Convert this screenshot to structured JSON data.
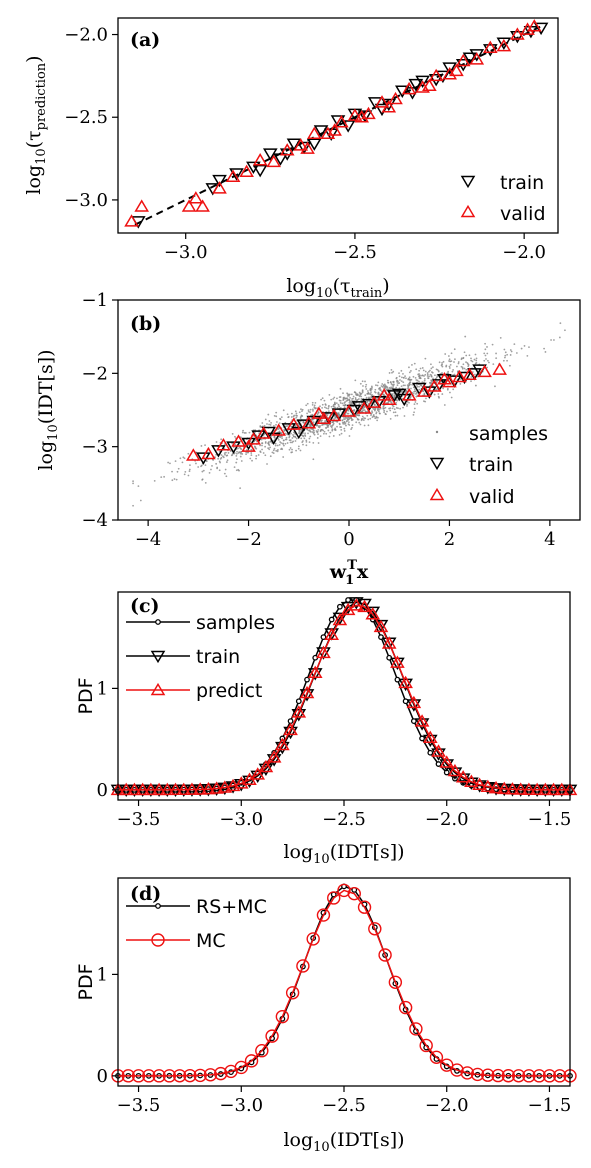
{
  "colors": {
    "black": "#000000",
    "red": "#ee1111",
    "gray": "#888888"
  },
  "chart_data": [
    {
      "panel": "(a)",
      "type": "scatter",
      "xlabel_base": "log",
      "xlabel_sub": "10",
      "xlabel_arg": "(τ",
      "xlabel_argsub": "train",
      "xlabel_close": ")",
      "ylabel_base": "log",
      "ylabel_sub": "10",
      "ylabel_arg": "(τ",
      "ylabel_argsub": "prediction",
      "ylabel_close": ")",
      "xlim": [
        -3.2,
        -1.9
      ],
      "ylim": [
        -3.2,
        -1.9
      ],
      "xticks": [
        -3.0,
        -2.5,
        -2.0
      ],
      "xtick_labels": [
        "−3.0",
        "−2.5",
        "−2.0"
      ],
      "yticks": [
        -3.0,
        -2.5,
        -2.0
      ],
      "ytick_labels": [
        "−3.0",
        "−2.5",
        "−2.0"
      ],
      "legend": [
        "train",
        "valid"
      ],
      "legend_loc": "lower-right",
      "fit_line": {
        "x": [
          -3.15,
          -1.95
        ],
        "y": [
          -3.15,
          -1.95
        ],
        "style": "dashed"
      },
      "series": [
        {
          "name": "train",
          "marker": "triangle-down",
          "color": "#000000",
          "x": [
            -3.14,
            -2.92,
            -2.9,
            -2.85,
            -2.8,
            -2.75,
            -2.72,
            -2.68,
            -2.65,
            -2.6,
            -2.57,
            -2.55,
            -2.5,
            -2.47,
            -2.44,
            -2.4,
            -2.36,
            -2.33,
            -2.3,
            -2.26,
            -2.22,
            -2.18,
            -2.14,
            -2.1,
            -2.06,
            -2.02,
            -1.98,
            -1.95,
            -2.62,
            -2.52,
            -2.42,
            -2.32,
            -2.24,
            -2.16,
            -2.78,
            -2.7
          ],
          "y": [
            -3.13,
            -2.93,
            -2.88,
            -2.84,
            -2.8,
            -2.72,
            -2.75,
            -2.66,
            -2.68,
            -2.58,
            -2.6,
            -2.52,
            -2.48,
            -2.49,
            -2.41,
            -2.42,
            -2.34,
            -2.35,
            -2.28,
            -2.27,
            -2.2,
            -2.18,
            -2.12,
            -2.09,
            -2.05,
            -2.01,
            -1.98,
            -1.96,
            -2.66,
            -2.55,
            -2.45,
            -2.3,
            -2.25,
            -2.14,
            -2.82,
            -2.72
          ]
        },
        {
          "name": "valid",
          "marker": "triangle-up",
          "color": "#ee1111",
          "x": [
            -3.16,
            -3.13,
            -2.99,
            -2.97,
            -2.95,
            -2.9,
            -2.86,
            -2.82,
            -2.78,
            -2.74,
            -2.7,
            -2.66,
            -2.62,
            -2.58,
            -2.54,
            -2.5,
            -2.46,
            -2.42,
            -2.38,
            -2.34,
            -2.3,
            -2.26,
            -2.22,
            -2.18,
            -2.14,
            -2.1,
            -2.06,
            -2.02,
            -1.99,
            -1.97,
            -2.64,
            -2.56,
            -2.48,
            -2.4,
            -2.28,
            -2.2
          ],
          "y": [
            -3.13,
            -3.04,
            -3.04,
            -2.99,
            -3.04,
            -2.93,
            -2.86,
            -2.83,
            -2.76,
            -2.77,
            -2.7,
            -2.67,
            -2.6,
            -2.6,
            -2.53,
            -2.49,
            -2.48,
            -2.41,
            -2.39,
            -2.33,
            -2.32,
            -2.25,
            -2.24,
            -2.16,
            -2.15,
            -2.08,
            -2.07,
            -2.0,
            -1.97,
            -1.95,
            -2.69,
            -2.58,
            -2.5,
            -2.44,
            -2.31,
            -2.22
          ]
        }
      ]
    },
    {
      "panel": "(b)",
      "type": "scatter",
      "xlabel_base": "w",
      "xlabel_sub": "1",
      "xlabel_sup": "T",
      "xlabel_tail": "x",
      "ylabel_base": "log",
      "ylabel_sub": "10",
      "ylabel_arg": "(IDT[s])",
      "xlim": [
        -4.6,
        4.6
      ],
      "ylim": [
        -4.0,
        -1.0
      ],
      "xticks": [
        -4,
        -2,
        0,
        2,
        4
      ],
      "xtick_labels": [
        "−4",
        "−2",
        "0",
        "2",
        "4"
      ],
      "yticks": [
        -4,
        -3,
        -2,
        -1
      ],
      "ytick_labels": [
        "−4",
        "−3",
        "−2",
        "−1"
      ],
      "legend": [
        "samples",
        "train",
        "valid"
      ],
      "legend_loc": "lower-right",
      "samples_trend": {
        "intercept": -2.5,
        "slope": 0.24,
        "scatter_sd": 0.13,
        "x_sd": 1.4,
        "count": 1800
      },
      "series": [
        {
          "name": "train",
          "marker": "triangle-down",
          "color": "#000000",
          "x": [
            -2.9,
            -2.6,
            -2.3,
            -2.0,
            -1.8,
            -1.5,
            -1.2,
            -1.0,
            -0.7,
            -0.4,
            -0.2,
            0.1,
            0.4,
            0.6,
            0.9,
            1.1,
            1.4,
            1.6,
            1.9,
            2.1,
            2.3,
            2.6,
            -1.6,
            -0.9,
            0.2,
            1.0,
            1.8,
            2.5
          ],
          "y": [
            -3.15,
            -3.05,
            -3.0,
            -2.95,
            -2.85,
            -2.88,
            -2.75,
            -2.8,
            -2.65,
            -2.6,
            -2.55,
            -2.5,
            -2.42,
            -2.38,
            -2.3,
            -2.35,
            -2.2,
            -2.25,
            -2.08,
            -2.1,
            -2.05,
            -1.95,
            -2.8,
            -2.7,
            -2.45,
            -2.28,
            -2.15,
            -2.0
          ]
        },
        {
          "name": "valid",
          "marker": "triangle-up",
          "color": "#ee1111",
          "x": [
            -3.1,
            -2.8,
            -2.5,
            -2.2,
            -1.9,
            -1.7,
            -1.4,
            -1.1,
            -0.8,
            -0.5,
            -0.3,
            0.0,
            0.3,
            0.5,
            0.8,
            1.2,
            1.5,
            1.7,
            2.0,
            2.2,
            2.4,
            2.7,
            3.0,
            -2.0,
            -0.6,
            0.7,
            1.9
          ],
          "y": [
            -3.12,
            -3.1,
            -2.98,
            -2.93,
            -2.9,
            -2.82,
            -2.78,
            -2.7,
            -2.68,
            -2.62,
            -2.58,
            -2.52,
            -2.48,
            -2.4,
            -2.36,
            -2.3,
            -2.25,
            -2.18,
            -2.12,
            -2.05,
            -2.02,
            -1.98,
            -1.95,
            -3.0,
            -2.55,
            -2.3,
            -2.08
          ]
        }
      ]
    },
    {
      "panel": "(c)",
      "type": "line",
      "xlabel_base": "log",
      "xlabel_sub": "10",
      "xlabel_arg": "(IDT[s])",
      "ylabel": "PDF",
      "xlim": [
        -3.6,
        -1.4
      ],
      "ylim": [
        -0.1,
        1.95
      ],
      "xticks": [
        -3.5,
        -3.0,
        -2.5,
        -2.0,
        -1.5
      ],
      "xtick_labels": [
        "−3.5",
        "−3.0",
        "−2.5",
        "−2.0",
        "−1.5"
      ],
      "yticks": [
        0,
        1
      ],
      "ytick_labels": [
        "0",
        "1"
      ],
      "legend": [
        "samples",
        "train",
        "predict"
      ],
      "legend_loc": "upper-left",
      "series": [
        {
          "name": "samples",
          "marker": "circle-small",
          "color": "#000000",
          "mu": -2.46,
          "sigma": 0.21,
          "peak": 1.88
        },
        {
          "name": "train",
          "marker": "triangle-down",
          "color": "#000000",
          "mu": -2.43,
          "sigma": 0.215,
          "peak": 1.85
        },
        {
          "name": "predict",
          "marker": "triangle-up",
          "color": "#ee1111",
          "mu": -2.43,
          "sigma": 0.22,
          "peak": 1.82
        }
      ]
    },
    {
      "panel": "(d)",
      "type": "line",
      "xlabel_base": "log",
      "xlabel_sub": "10",
      "xlabel_arg": "(IDT[s])",
      "ylabel": "PDF",
      "xlim": [
        -3.6,
        -1.4
      ],
      "ylim": [
        -0.1,
        1.95
      ],
      "xticks": [
        -3.5,
        -3.0,
        -2.5,
        -2.0,
        -1.5
      ],
      "xtick_labels": [
        "−3.5",
        "−3.0",
        "−2.5",
        "−2.0",
        "−1.5"
      ],
      "yticks": [
        0,
        1
      ],
      "ytick_labels": [
        "0",
        "1"
      ],
      "legend": [
        "RS+MC",
        "MC"
      ],
      "legend_loc": "upper-left",
      "series": [
        {
          "name": "RS+MC",
          "marker": "circle-small",
          "color": "#000000",
          "mu": -2.49,
          "sigma": 0.2,
          "peak": 1.87
        },
        {
          "name": "MC",
          "marker": "circle-open",
          "color": "#ee1111",
          "mu": -2.49,
          "sigma": 0.205,
          "peak": 1.83
        }
      ]
    }
  ]
}
